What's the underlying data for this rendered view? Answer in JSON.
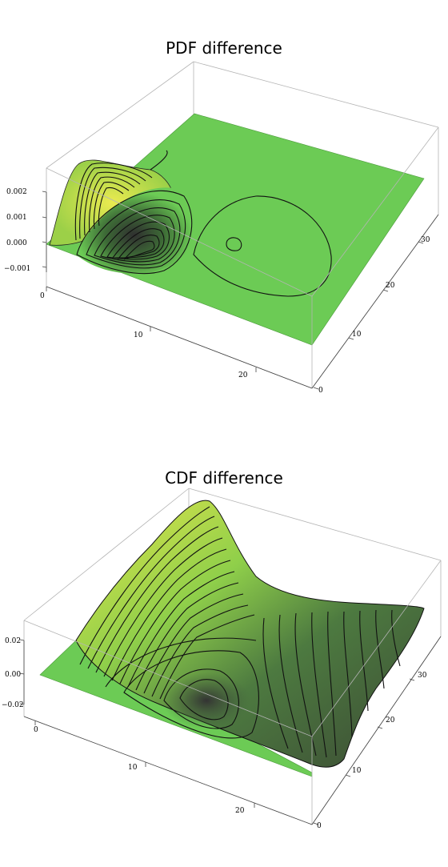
{
  "chart_data": [
    {
      "type": "surface3d",
      "title": "PDF difference",
      "z_ticks": [
        "0.002",
        "0.001",
        "0.000",
        "−0.001"
      ],
      "x_ticks": [
        "0",
        "10",
        "20"
      ],
      "y_ticks": [
        "0",
        "10",
        "20",
        "30"
      ],
      "x_range": [
        0,
        25
      ],
      "y_range": [
        0,
        35
      ],
      "z_range": [
        -0.0015,
        0.0023
      ],
      "features": [
        {
          "kind": "peak",
          "x": 1,
          "y": 33,
          "z": 0.0021
        },
        {
          "kind": "trough",
          "x": 8,
          "y": 27,
          "z": -0.0011
        },
        {
          "kind": "bump",
          "x": 11,
          "y": 17,
          "z": 0.0002
        }
      ],
      "surface_color_high": "#e8e84a",
      "surface_color_mid": "#6ccb55",
      "surface_color_low": "#3a3a3a"
    },
    {
      "type": "surface3d",
      "title": "CDF difference",
      "z_ticks": [
        "0.02",
        "0.00",
        "−0.02"
      ],
      "x_ticks": [
        "0",
        "10",
        "20"
      ],
      "y_ticks": [
        "0",
        "10",
        "20",
        "30"
      ],
      "x_range": [
        0,
        25
      ],
      "y_range": [
        0,
        35
      ],
      "z_range": [
        -0.03,
        0.03
      ],
      "features": [
        {
          "kind": "ridge",
          "x": 4,
          "y": 33,
          "z": 0.03
        },
        {
          "kind": "trough",
          "x": 16,
          "y": 22,
          "z": -0.022
        }
      ],
      "surface_color_high": "#e8e84a",
      "surface_color_mid": "#6ccb55",
      "surface_color_low": "#3a3a3a"
    }
  ]
}
